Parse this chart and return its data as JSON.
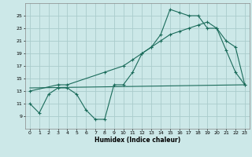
{
  "title": "",
  "xlabel": "Humidex (Indice chaleur)",
  "bg_color": "#cce8e8",
  "grid_color": "#aacccc",
  "line_color": "#1a6b5a",
  "xlim": [
    -0.5,
    23.5
  ],
  "ylim": [
    7,
    27
  ],
  "xticks": [
    0,
    1,
    2,
    3,
    4,
    5,
    6,
    7,
    8,
    9,
    10,
    11,
    12,
    13,
    14,
    15,
    16,
    17,
    18,
    19,
    20,
    21,
    22,
    23
  ],
  "yticks": [
    9,
    11,
    13,
    15,
    17,
    19,
    21,
    23,
    25
  ],
  "line1_x": [
    0,
    1,
    2,
    3,
    4,
    5,
    6,
    7,
    8,
    9,
    10,
    11,
    12,
    13,
    14,
    15,
    16,
    17,
    18,
    19,
    20,
    21,
    22,
    23
  ],
  "line1_y": [
    11,
    9.5,
    12.5,
    13.5,
    13.5,
    12.5,
    10,
    8.5,
    8.5,
    14,
    14,
    16,
    19,
    20,
    22,
    26,
    25.5,
    25,
    25,
    23,
    23,
    19.5,
    16,
    14
  ],
  "line2_x": [
    0,
    23
  ],
  "line2_y": [
    13.5,
    14
  ],
  "line3_x": [
    0,
    3,
    4,
    8,
    10,
    11,
    12,
    13,
    14,
    15,
    16,
    17,
    18,
    19,
    20,
    21,
    22,
    23
  ],
  "line3_y": [
    13,
    14,
    14,
    16,
    17,
    18,
    19,
    20,
    21,
    22,
    22.5,
    23,
    23.5,
    24,
    23,
    21,
    20,
    14
  ]
}
